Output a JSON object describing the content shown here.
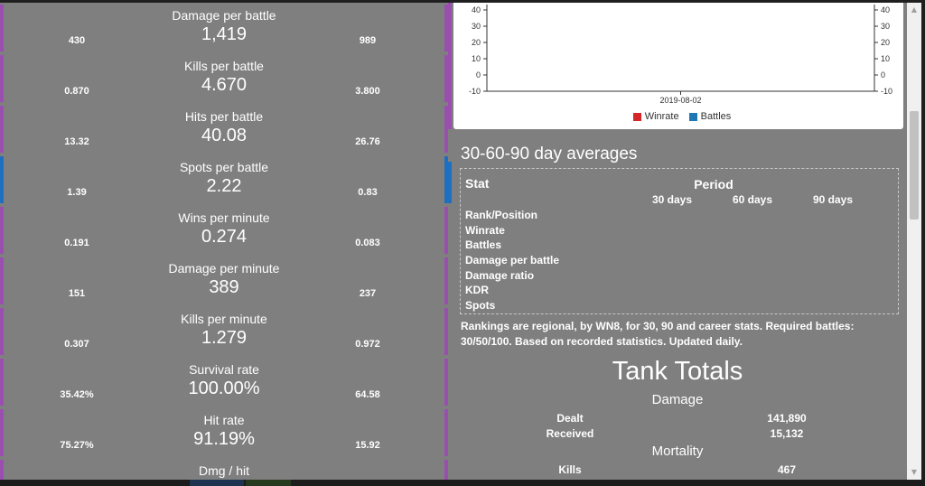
{
  "stats": [
    {
      "title": "Damage per battle",
      "value": "1,419",
      "min": "430",
      "max": "989",
      "accent": "purple"
    },
    {
      "title": "Kills per battle",
      "value": "4.670",
      "min": "0.870",
      "max": "3.800",
      "accent": "purple"
    },
    {
      "title": "Hits per battle",
      "value": "40.08",
      "min": "13.32",
      "max": "26.76",
      "accent": "purple"
    },
    {
      "title": "Spots per battle",
      "value": "2.22",
      "min": "1.39",
      "max": "0.83",
      "accent": "blue"
    },
    {
      "title": "Wins per minute",
      "value": "0.274",
      "min": "0.191",
      "max": "0.083",
      "accent": "purple"
    },
    {
      "title": "Damage per minute",
      "value": "389",
      "min": "151",
      "max": "237",
      "accent": "purple"
    },
    {
      "title": "Kills per minute",
      "value": "1.279",
      "min": "0.307",
      "max": "0.972",
      "accent": "purple"
    },
    {
      "title": "Survival rate",
      "value": "100.00%",
      "min": "35.42%",
      "max": "64.58",
      "accent": "purple"
    },
    {
      "title": "Hit rate",
      "value": "91.19%",
      "min": "75.27%",
      "max": "15.92",
      "accent": "purple"
    },
    {
      "title": "Dmg / hit",
      "value": "",
      "min": "",
      "max": "",
      "accent": "purple"
    }
  ],
  "chart": {
    "left_ticks": [
      "40",
      "30",
      "20",
      "10",
      "0",
      "-10"
    ],
    "right_ticks": [
      "40",
      "30",
      "20",
      "10",
      "0",
      "-10"
    ],
    "x_label": "2019-08-02",
    "legend": [
      {
        "name": "Winrate",
        "color": "#d62728"
      },
      {
        "name": "Battles",
        "color": "#1f77b4"
      }
    ]
  },
  "averages": {
    "title": "30-60-90 day averages",
    "stat_header": "Stat",
    "period_header": "Period",
    "periods": [
      "30 days",
      "60 days",
      "90 days"
    ],
    "rows": [
      "Rank/Position",
      "Winrate",
      "Battles",
      "Damage per battle",
      "Damage ratio",
      "KDR",
      "Spots"
    ],
    "note": "Rankings are regional, by WN8, for 30, 90 and career stats. Required battles: 30/50/100. Based on recorded statistics. Updated daily."
  },
  "totals": {
    "title": "Tank Totals",
    "damage_header": "Damage",
    "dealt_label": "Dealt",
    "dealt_value": "141,890",
    "received_label": "Received",
    "received_value": "15,132",
    "mortality_header": "Mortality",
    "kills_label": "Kills",
    "kills_value": "467"
  },
  "colors": {
    "panel": "#7f7f7f",
    "purple_accent": "#9a4fb0",
    "blue_accent": "#1e6fc0"
  }
}
